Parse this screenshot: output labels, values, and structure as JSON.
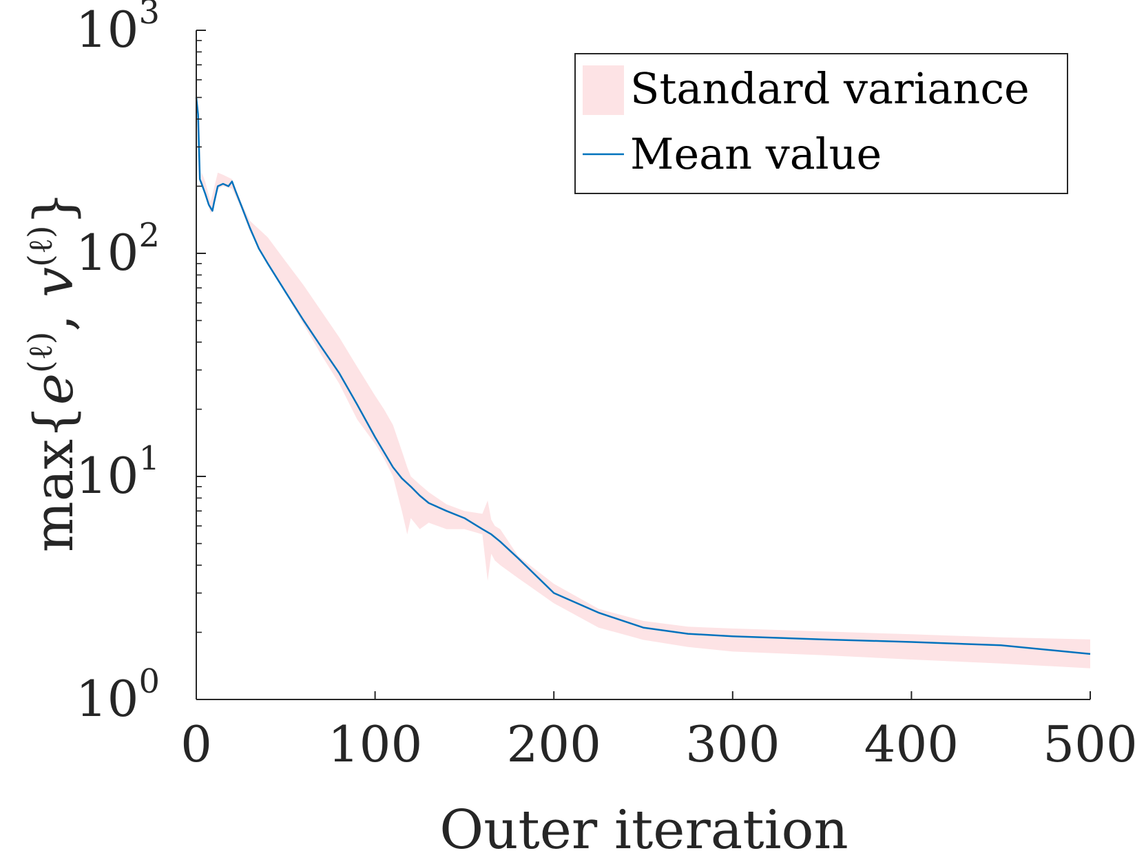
{
  "chart_data": {
    "type": "line",
    "title": "",
    "xlabel": "Outer iteration",
    "ylabel": "max{e^(ℓ), v^(ℓ)}",
    "ylabel_parts": {
      "prefix": "max{",
      "e": "e",
      "sep": ", ",
      "v": "v",
      "sup": "(ℓ)",
      "suffix": "}"
    },
    "xlim": [
      0,
      500
    ],
    "ylim": [
      1,
      1000
    ],
    "yscale": "log",
    "xticks": [
      0,
      100,
      200,
      300,
      400,
      500
    ],
    "xtick_labels": [
      "0",
      "100",
      "200",
      "300",
      "400",
      "500"
    ],
    "yticks": [
      1,
      10,
      100,
      1000
    ],
    "ytick_labels": [
      {
        "base": "10",
        "exp": "0"
      },
      {
        "base": "10",
        "exp": "1"
      },
      {
        "base": "10",
        "exp": "2"
      },
      {
        "base": "10",
        "exp": "3"
      }
    ],
    "grid": false,
    "legend_position": "top-right",
    "series": [
      {
        "name": "Standard variance",
        "kind": "band",
        "color": "#fde3e5",
        "x": [
          0,
          2,
          3,
          5,
          8,
          12,
          15,
          20,
          25,
          30,
          40,
          50,
          60,
          70,
          80,
          90,
          100,
          105,
          110,
          115,
          118,
          120,
          125,
          130,
          140,
          150,
          160,
          163,
          165,
          167,
          170,
          180,
          200,
          225,
          250,
          275,
          300,
          350,
          400,
          450,
          500
        ],
        "lower": [
          520,
          480,
          210,
          190,
          150,
          195,
          200,
          195,
          160,
          125,
          90,
          66,
          48,
          35,
          26,
          18,
          14,
          12,
          10,
          7.0,
          5.5,
          6.5,
          5.8,
          6.2,
          5.8,
          5.8,
          5.5,
          3.4,
          4.5,
          4.2,
          4.0,
          3.5,
          2.7,
          2.1,
          1.85,
          1.72,
          1.64,
          1.58,
          1.51,
          1.45,
          1.38
        ],
        "upper": [
          520,
          480,
          230,
          210,
          170,
          230,
          225,
          215,
          170,
          140,
          118,
          92,
          72,
          55,
          42,
          31,
          23,
          20,
          17,
          13,
          11,
          10,
          9.2,
          8.5,
          7.5,
          7.0,
          6.8,
          7.8,
          6.4,
          6.0,
          5.8,
          4.4,
          3.3,
          2.55,
          2.25,
          2.12,
          2.08,
          2.02,
          1.96,
          1.9,
          1.86
        ]
      },
      {
        "name": "Mean value",
        "kind": "line",
        "color": "#0072bd",
        "x": [
          0,
          1,
          2,
          3,
          5,
          7,
          9,
          10,
          12,
          15,
          18,
          20,
          22,
          25,
          30,
          35,
          40,
          50,
          60,
          70,
          80,
          90,
          100,
          110,
          115,
          120,
          125,
          130,
          140,
          150,
          160,
          165,
          170,
          180,
          200,
          225,
          250,
          275,
          300,
          350,
          400,
          450,
          500
        ],
        "y": [
          500,
          420,
          215,
          205,
          185,
          165,
          155,
          170,
          200,
          205,
          200,
          210,
          190,
          165,
          130,
          105,
          90,
          67,
          50,
          38,
          29,
          21,
          15,
          11,
          9.8,
          9.0,
          8.2,
          7.6,
          7.0,
          6.5,
          5.8,
          5.5,
          5.1,
          4.3,
          3.0,
          2.45,
          2.1,
          1.97,
          1.92,
          1.86,
          1.81,
          1.75,
          1.6
        ]
      }
    ]
  }
}
